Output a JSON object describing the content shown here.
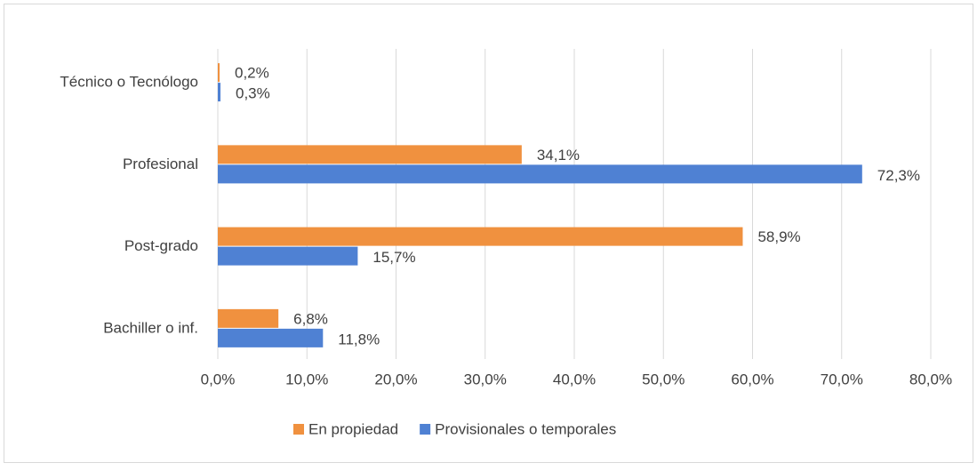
{
  "chart_data": {
    "type": "hbar",
    "categories": [
      "Técnico o Tecnólogo",
      "Profesional",
      "Post-grado",
      "Bachiller o inf."
    ],
    "series": [
      {
        "name": "En propiedad",
        "color": "#f0913f",
        "values": [
          0.2,
          34.1,
          58.9,
          6.8
        ],
        "value_labels": [
          "0,2%",
          "34,1%",
          "58,9%",
          "6,8%"
        ]
      },
      {
        "name": "Provisionales o temporales",
        "color": "#4f81d3",
        "values": [
          0.3,
          72.3,
          15.7,
          11.8
        ],
        "value_labels": [
          "0,3%",
          "72,3%",
          "15,7%",
          "11,8%"
        ]
      }
    ],
    "xlim": [
      0,
      80
    ],
    "xticks": [
      {
        "value": 0,
        "label": "0,0%"
      },
      {
        "value": 10,
        "label": "10,0%"
      },
      {
        "value": 20,
        "label": "20,0%"
      },
      {
        "value": 30,
        "label": "30,0%"
      },
      {
        "value": 40,
        "label": "40,0%"
      },
      {
        "value": 50,
        "label": "50,0%"
      },
      {
        "value": 60,
        "label": "60,0%"
      },
      {
        "value": 70,
        "label": "70,0%"
      },
      {
        "value": 80,
        "label": "80,0%"
      }
    ],
    "grid": true,
    "legend": "bottom"
  }
}
